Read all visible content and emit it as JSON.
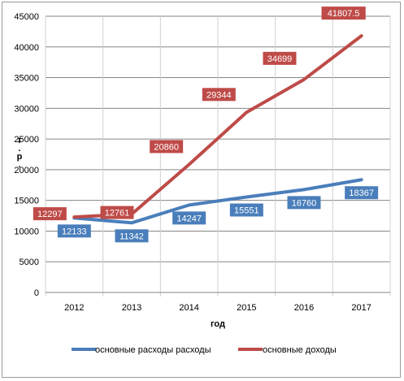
{
  "chart_data": {
    "type": "line",
    "categories": [
      "2012",
      "2013",
      "2014",
      "2015",
      "2016",
      "2017"
    ],
    "series": [
      {
        "name": "основные расходы расходы",
        "values": [
          12133,
          11342,
          14247,
          15551,
          16760,
          18367
        ],
        "labels": [
          "12133",
          "11342",
          "14247",
          "15551",
          "16760",
          "18367"
        ],
        "color": "#4a7ebb"
      },
      {
        "name": "основные доходы",
        "values": [
          12297,
          12761,
          20860,
          29344,
          34699,
          41807.5
        ],
        "labels": [
          "12297",
          "12761",
          "20860",
          "29344",
          "34699",
          "41807.5"
        ],
        "color": "#be4b48"
      }
    ],
    "yticks": [
      "0",
      "5000",
      "10000",
      "15000",
      "20000",
      "25000",
      "30000",
      "35000",
      "40000",
      "45000"
    ],
    "ylim": [
      0,
      45000
    ],
    "xlabel": "год",
    "ylabel": "т.р.",
    "grid": "horizontal",
    "legend": "bottom"
  }
}
